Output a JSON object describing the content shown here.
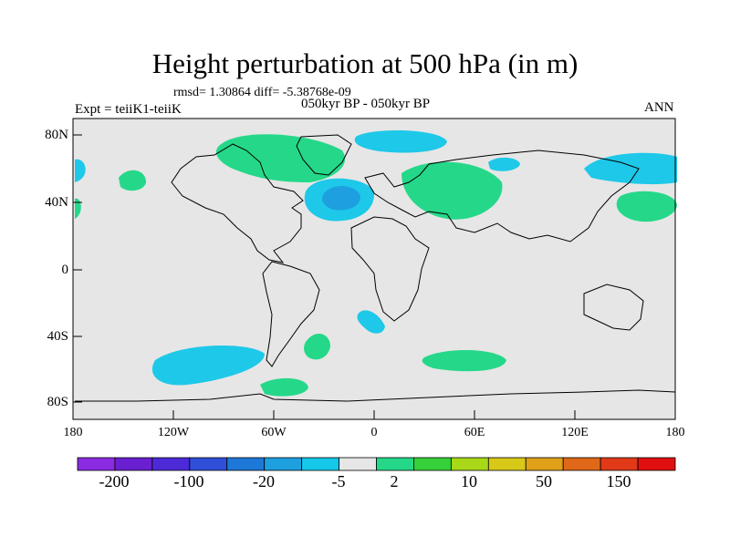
{
  "title": "Height perturbation at 500 hPa (in m)",
  "stats_line": "rmsd= 1.30864 diff= -5.38768e-09",
  "period_line": "050kyr BP - 050kyr BP",
  "experiment_line": "Expt = teiiK1-teiiK",
  "season": "ANN",
  "lat_labels": [
    "80N",
    "40N",
    "0",
    "40S",
    "80S"
  ],
  "lon_labels": [
    "180",
    "120W",
    "60W",
    "0",
    "60E",
    "120E",
    "180"
  ],
  "colorbar": {
    "colors": [
      "#8a2be2",
      "#6a1fd0",
      "#4d2ad8",
      "#2f4fd8",
      "#1e78d8",
      "#1ea0e0",
      "#16c8e8",
      "#e6e6e6",
      "#25d889",
      "#36d03a",
      "#a8d818",
      "#d8c818",
      "#e0a018",
      "#e06818",
      "#e03a18",
      "#e01010"
    ],
    "tick_labels": [
      "-200",
      "-100",
      "-20",
      "-5",
      "2",
      "10",
      "50",
      "150"
    ]
  },
  "colors": {
    "background": "#e6e6e6",
    "negative_fill": "#1ec8e8",
    "negative_core": "#1ea0e0",
    "positive_fill": "#25d889"
  }
}
